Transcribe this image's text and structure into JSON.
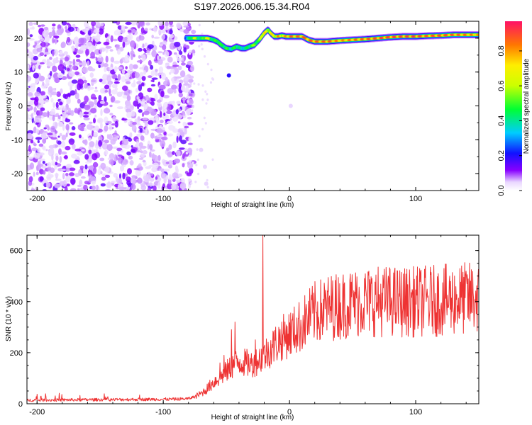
{
  "title": "S197.2026.006.15.34.R04",
  "chart_data": [
    {
      "type": "heatmap",
      "xlabel": "Height of straight line (km)",
      "ylabel": "Frequency (Hz)",
      "xlim": [
        -208,
        150
      ],
      "ylim": [
        -25,
        25
      ],
      "x_ticks": [
        -200,
        -100,
        0,
        100
      ],
      "y_ticks": [
        -20,
        -10,
        0,
        10,
        20
      ],
      "colorbar": {
        "label": "Normalized spectral amplitude",
        "range": [
          0,
          0.97
        ],
        "ticks": [
          0.0,
          0.2,
          0.4,
          0.6,
          0.8
        ]
      },
      "noise_region_x": [
        -208,
        -82
      ],
      "trace": {
        "x": [
          -82,
          -75,
          -70,
          -65,
          -60,
          -57,
          -54,
          -50,
          -46,
          -42,
          -38,
          -35,
          -32,
          -28,
          -24,
          -20,
          -17,
          -15,
          -12,
          -9,
          -6,
          -3,
          0,
          5,
          10,
          15,
          20,
          25,
          30,
          40,
          50,
          60,
          70,
          80,
          90,
          100,
          110,
          120,
          130,
          140,
          150
        ],
        "y": [
          20,
          20,
          20,
          20,
          19.5,
          19,
          18,
          17,
          16.8,
          17.5,
          17,
          17,
          17.5,
          18,
          19.5,
          21.5,
          22.5,
          21.5,
          20.5,
          20.5,
          20.8,
          20.5,
          20.5,
          20.5,
          20.5,
          19.5,
          19,
          19,
          19,
          19.3,
          19.5,
          19.7,
          20,
          20.3,
          20.5,
          20.5,
          20.7,
          20.8,
          21,
          21,
          21
        ],
        "amplitude": [
          0.3,
          0.7,
          0.45,
          0.8,
          0.45,
          0.6,
          0.5,
          0.55,
          0.45,
          0.55,
          0.4,
          0.45,
          0.5,
          0.6,
          0.55,
          0.9,
          0.6,
          0.85,
          0.7,
          0.9,
          0.75,
          0.85,
          0.95,
          0.9,
          0.95,
          0.92,
          0.95,
          0.9,
          0.95,
          0.85,
          0.9,
          0.92,
          0.95,
          0.97,
          0.95,
          0.97,
          0.92,
          0.95,
          0.93,
          0.9,
          0.85
        ]
      },
      "blobs": [
        {
          "x": -48,
          "y": 9,
          "amplitude": 0.2
        },
        {
          "x": -70,
          "y": -13,
          "amplitude": 0.05
        },
        {
          "x": -67,
          "y": -18,
          "amplitude": 0.05
        },
        {
          "x": -66,
          "y": -23,
          "amplitude": 0.05
        },
        {
          "x": 1,
          "y": 0,
          "amplitude": 0.05
        }
      ]
    },
    {
      "type": "line",
      "xlabel": "Height of straight line (km)",
      "ylabel": "SNR (10 * v/v)",
      "xlim": [
        -208,
        150
      ],
      "ylim": [
        0,
        660
      ],
      "x_ticks": [
        -200,
        -100,
        0,
        100
      ],
      "y_ticks": [
        0,
        200,
        400,
        600
      ],
      "color": "#ee3333",
      "series": [
        {
          "name": "SNR",
          "x": [
            -208,
            -180,
            -150,
            -120,
            -90,
            -80,
            -75,
            -70,
            -65,
            -60,
            -55,
            -50,
            -45,
            -40,
            -35,
            -30,
            -25,
            -20,
            -15,
            -10,
            -5,
            0,
            5,
            10,
            15,
            20,
            25,
            30,
            40,
            50,
            60,
            70,
            80,
            90,
            100,
            110,
            120,
            130,
            140,
            150
          ],
          "y": [
            14,
            15,
            16,
            17,
            18,
            20,
            28,
            40,
            60,
            85,
            105,
            125,
            150,
            165,
            160,
            155,
            170,
            190,
            215,
            240,
            260,
            275,
            290,
            310,
            335,
            355,
            365,
            375,
            385,
            395,
            400,
            402,
            402,
            398,
            400,
            402,
            404,
            408,
            412,
            415
          ]
        }
      ],
      "spikes": [
        {
          "x": -21,
          "y": 660
        },
        {
          "x": -43,
          "y": 320
        },
        {
          "x": -46,
          "y": 290
        },
        {
          "x": -52,
          "y": 190
        },
        {
          "x": -55,
          "y": 160
        },
        {
          "x": -27,
          "y": 250
        }
      ]
    }
  ]
}
